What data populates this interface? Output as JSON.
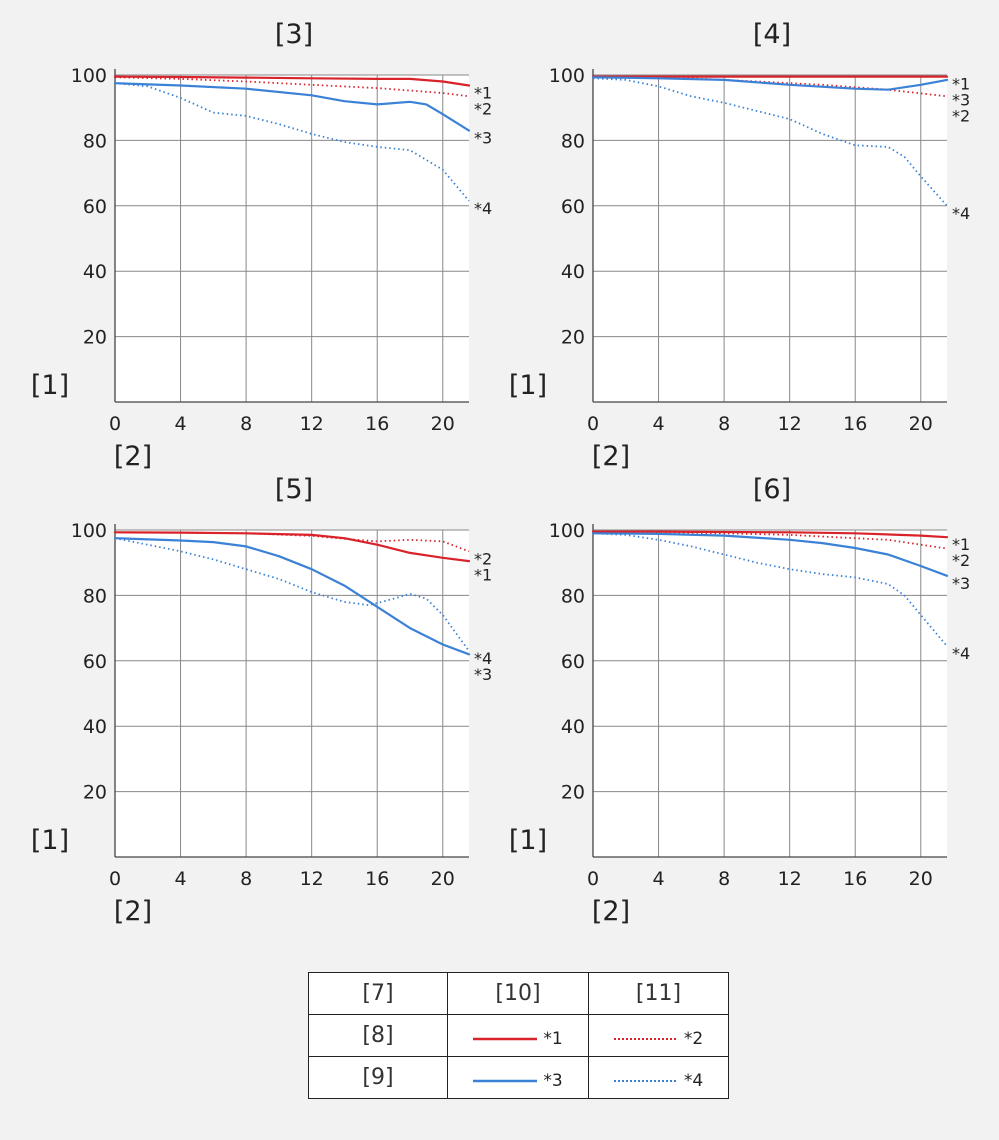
{
  "colors": {
    "red": "#d9232b",
    "blue": "#3b82d6",
    "grid": "#888888",
    "plot_bg": "#ffffff",
    "page_bg": "#f2f2f2"
  },
  "chart_data": [
    {
      "type": "line",
      "title": "[3]",
      "ylabel": "[1]",
      "xlabel": "[2]",
      "xlim": [
        0,
        21.6
      ],
      "ylim": [
        0,
        100
      ],
      "x_ticks": [
        "0",
        "4",
        "8",
        "12",
        "16",
        "20"
      ],
      "y_ticks": [
        "20",
        "40",
        "60",
        "80",
        "100"
      ],
      "grid": true,
      "series": [
        {
          "name": "*1",
          "color": "red",
          "style": "solid",
          "points": [
            [
              0,
              99.5
            ],
            [
              4,
              99.4
            ],
            [
              8,
              99.2
            ],
            [
              12,
              99
            ],
            [
              16,
              98.8
            ],
            [
              18,
              98.8
            ],
            [
              20,
              98
            ],
            [
              21.6,
              96.8
            ]
          ]
        },
        {
          "name": "*2",
          "color": "red",
          "style": "dotted",
          "points": [
            [
              0,
              99.3
            ],
            [
              4,
              98.8
            ],
            [
              8,
              98
            ],
            [
              12,
              97
            ],
            [
              16,
              96
            ],
            [
              20,
              94.5
            ],
            [
              21.6,
              93.5
            ]
          ]
        },
        {
          "name": "*3",
          "color": "blue",
          "style": "solid",
          "points": [
            [
              0,
              97.5
            ],
            [
              4,
              96.8
            ],
            [
              8,
              95.8
            ],
            [
              12,
              93.8
            ],
            [
              14,
              92
            ],
            [
              16,
              91
            ],
            [
              18,
              91.8
            ],
            [
              19,
              91
            ],
            [
              20,
              88
            ],
            [
              21.6,
              83
            ]
          ]
        },
        {
          "name": "*4",
          "color": "blue",
          "style": "dotted",
          "points": [
            [
              0,
              97.5
            ],
            [
              2,
              96.5
            ],
            [
              4,
              93
            ],
            [
              6,
              88.5
            ],
            [
              8,
              87.5
            ],
            [
              10,
              85
            ],
            [
              12,
              82
            ],
            [
              14,
              79.5
            ],
            [
              16,
              78
            ],
            [
              18,
              77
            ],
            [
              20,
              71
            ],
            [
              21.6,
              61.5
            ]
          ]
        }
      ]
    },
    {
      "type": "line",
      "title": "[4]",
      "ylabel": "[1]",
      "xlabel": "[2]",
      "xlim": [
        0,
        21.6
      ],
      "ylim": [
        0,
        100
      ],
      "x_ticks": [
        "0",
        "4",
        "8",
        "12",
        "16",
        "20"
      ],
      "y_ticks": [
        "20",
        "40",
        "60",
        "80",
        "100"
      ],
      "grid": true,
      "series": [
        {
          "name": "*1",
          "color": "red",
          "style": "solid",
          "points": [
            [
              0,
              99.5
            ],
            [
              4,
              99.5
            ],
            [
              8,
              99.5
            ],
            [
              12,
              99.5
            ],
            [
              16,
              99.5
            ],
            [
              20,
              99.5
            ],
            [
              21.6,
              99.5
            ]
          ]
        },
        {
          "name": "*2",
          "color": "red",
          "style": "dotted",
          "points": [
            [
              0,
              99.5
            ],
            [
              6,
              99
            ],
            [
              10,
              98
            ],
            [
              14,
              97
            ],
            [
              18,
              95.5
            ],
            [
              21.6,
              93.5
            ]
          ]
        },
        {
          "name": "*3",
          "color": "blue",
          "style": "solid",
          "points": [
            [
              0,
              99.3
            ],
            [
              4,
              99
            ],
            [
              8,
              98.5
            ],
            [
              12,
              97
            ],
            [
              16,
              95.8
            ],
            [
              18,
              95.5
            ],
            [
              20,
              97
            ],
            [
              21.6,
              98.5
            ]
          ]
        },
        {
          "name": "*4",
          "color": "blue",
          "style": "dotted",
          "points": [
            [
              0,
              99
            ],
            [
              2,
              98.5
            ],
            [
              4,
              96.5
            ],
            [
              6,
              93.5
            ],
            [
              8,
              91.5
            ],
            [
              10,
              89
            ],
            [
              12,
              86.5
            ],
            [
              14,
              82
            ],
            [
              16,
              78.5
            ],
            [
              18,
              78
            ],
            [
              19,
              75
            ],
            [
              20,
              69
            ],
            [
              21.6,
              60
            ]
          ]
        }
      ]
    },
    {
      "type": "line",
      "title": "[5]",
      "ylabel": "[1]",
      "xlabel": "[2]",
      "xlim": [
        0,
        21.6
      ],
      "ylim": [
        0,
        100
      ],
      "x_ticks": [
        "0",
        "4",
        "8",
        "12",
        "16",
        "20"
      ],
      "y_ticks": [
        "20",
        "40",
        "60",
        "80",
        "100"
      ],
      "grid": true,
      "series": [
        {
          "name": "*1",
          "color": "red",
          "style": "solid",
          "points": [
            [
              0,
              99.3
            ],
            [
              4,
              99.2
            ],
            [
              8,
              99
            ],
            [
              12,
              98.5
            ],
            [
              14,
              97.5
            ],
            [
              16,
              95.5
            ],
            [
              18,
              93
            ],
            [
              20,
              91.5
            ],
            [
              21.6,
              90.5
            ]
          ]
        },
        {
          "name": "*2",
          "color": "red",
          "style": "dotted",
          "points": [
            [
              0,
              99.3
            ],
            [
              4,
              99.2
            ],
            [
              8,
              99
            ],
            [
              12,
              98.2
            ],
            [
              14,
              97.3
            ],
            [
              16,
              96.5
            ],
            [
              18,
              97
            ],
            [
              20,
              96.5
            ],
            [
              21.6,
              93.5
            ]
          ]
        },
        {
          "name": "*3",
          "color": "blue",
          "style": "solid",
          "points": [
            [
              0,
              97.5
            ],
            [
              4,
              96.8
            ],
            [
              6,
              96.3
            ],
            [
              8,
              95
            ],
            [
              10,
              92
            ],
            [
              12,
              88
            ],
            [
              14,
              83
            ],
            [
              16,
              76.5
            ],
            [
              18,
              70
            ],
            [
              20,
              65
            ],
            [
              21.6,
              62
            ]
          ]
        },
        {
          "name": "*4",
          "color": "blue",
          "style": "dotted",
          "points": [
            [
              0,
              97.5
            ],
            [
              2,
              95.5
            ],
            [
              4,
              93.5
            ],
            [
              6,
              91
            ],
            [
              8,
              88
            ],
            [
              10,
              85
            ],
            [
              12,
              81
            ],
            [
              14,
              78
            ],
            [
              15.5,
              77
            ],
            [
              17,
              79
            ],
            [
              18,
              80.5
            ],
            [
              19,
              79
            ],
            [
              20,
              74
            ],
            [
              21.6,
              63
            ]
          ]
        }
      ]
    },
    {
      "type": "line",
      "title": "[6]",
      "ylabel": "[1]",
      "xlabel": "[2]",
      "xlim": [
        0,
        21.6
      ],
      "ylim": [
        0,
        100
      ],
      "x_ticks": [
        "0",
        "4",
        "8",
        "12",
        "16",
        "20"
      ],
      "y_ticks": [
        "20",
        "40",
        "60",
        "80",
        "100"
      ],
      "grid": true,
      "series": [
        {
          "name": "*1",
          "color": "red",
          "style": "solid",
          "points": [
            [
              0,
              99.5
            ],
            [
              4,
              99.5
            ],
            [
              8,
              99.4
            ],
            [
              12,
              99.3
            ],
            [
              16,
              99
            ],
            [
              20,
              98.3
            ],
            [
              21.6,
              97.8
            ]
          ]
        },
        {
          "name": "*2",
          "color": "red",
          "style": "dotted",
          "points": [
            [
              0,
              99.4
            ],
            [
              4,
              99.3
            ],
            [
              8,
              99
            ],
            [
              12,
              98.5
            ],
            [
              16,
              97.5
            ],
            [
              18,
              97
            ],
            [
              20,
              95.5
            ],
            [
              21.6,
              94.3
            ]
          ]
        },
        {
          "name": "*3",
          "color": "blue",
          "style": "solid",
          "points": [
            [
              0,
              99
            ],
            [
              4,
              98.8
            ],
            [
              8,
              98.3
            ],
            [
              12,
              97
            ],
            [
              14,
              96
            ],
            [
              16,
              94.5
            ],
            [
              18,
              92.5
            ],
            [
              20,
              89
            ],
            [
              21.6,
              86
            ]
          ]
        },
        {
          "name": "*4",
          "color": "blue",
          "style": "dotted",
          "points": [
            [
              0,
              99
            ],
            [
              2,
              98.5
            ],
            [
              4,
              97
            ],
            [
              6,
              95
            ],
            [
              8,
              92.5
            ],
            [
              10,
              90
            ],
            [
              12,
              88
            ],
            [
              14,
              86.5
            ],
            [
              16,
              85.5
            ],
            [
              18,
              83.5
            ],
            [
              19,
              80
            ],
            [
              20,
              74
            ],
            [
              21.6,
              64.5
            ]
          ]
        }
      ]
    }
  ],
  "legend": {
    "header": [
      "[7]",
      "[10]",
      "[11]"
    ],
    "rows": [
      {
        "label": "[8]",
        "solid_label": "*1",
        "dotted_label": "*2",
        "color": "red"
      },
      {
        "label": "[9]",
        "solid_label": "*3",
        "dotted_label": "*4",
        "color": "blue"
      }
    ]
  }
}
